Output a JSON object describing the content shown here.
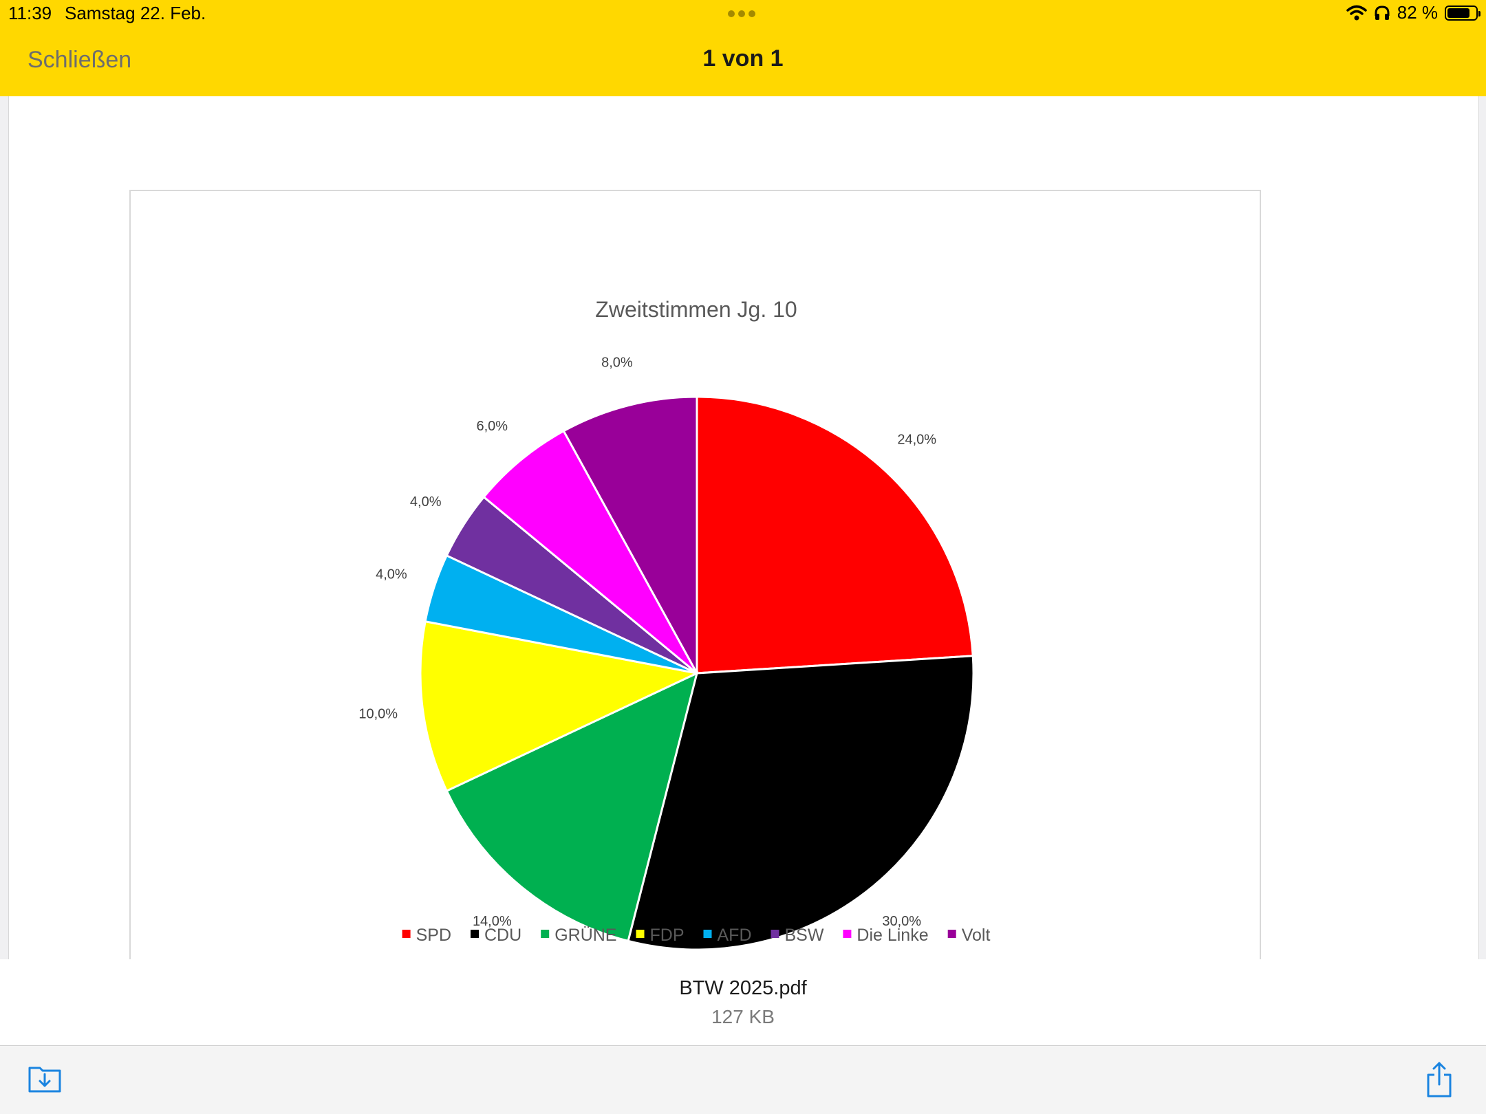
{
  "status_bar": {
    "time": "11:39",
    "date": "Samstag 22. Feb.",
    "battery": "82 %",
    "battery_level": 0.82,
    "icons": [
      "wifi-icon",
      "headphones-icon",
      "battery-icon"
    ]
  },
  "header": {
    "close_label": "Schließen",
    "page_counter": "1 von 1",
    "background": "#FFD800"
  },
  "file": {
    "name": "BTW 2025.pdf",
    "size": "127 KB"
  },
  "toolbar": {
    "icons": [
      "save-to-files-icon",
      "share-icon"
    ],
    "accent": "#1A84E0"
  },
  "chart_data": {
    "type": "pie",
    "title": "Zweitstimmen Jg. 10",
    "legend_position": "bottom",
    "start_angle": "12 o'clock, clockwise",
    "slices": [
      {
        "label": "SPD",
        "value": 24,
        "display": "24,0%",
        "color": "#FF0000"
      },
      {
        "label": "CDU",
        "value": 30,
        "display": "30,0%",
        "color": "#000000"
      },
      {
        "label": "GRÜNE",
        "value": 14,
        "display": "14,0%",
        "color": "#00B050"
      },
      {
        "label": "FDP",
        "value": 10,
        "display": "10,0%",
        "color": "#FFFF00"
      },
      {
        "label": "AFD",
        "value": 4,
        "display": "4,0%",
        "color": "#00B0F0"
      },
      {
        "label": "BSW",
        "value": 4,
        "display": "4,0%",
        "color": "#7030A0"
      },
      {
        "label": "Die Linke",
        "value": 6,
        "display": "6,0%",
        "color": "#FF00FF"
      },
      {
        "label": "Volt",
        "value": 8,
        "display": "8,0%",
        "color": "#990099"
      }
    ]
  }
}
